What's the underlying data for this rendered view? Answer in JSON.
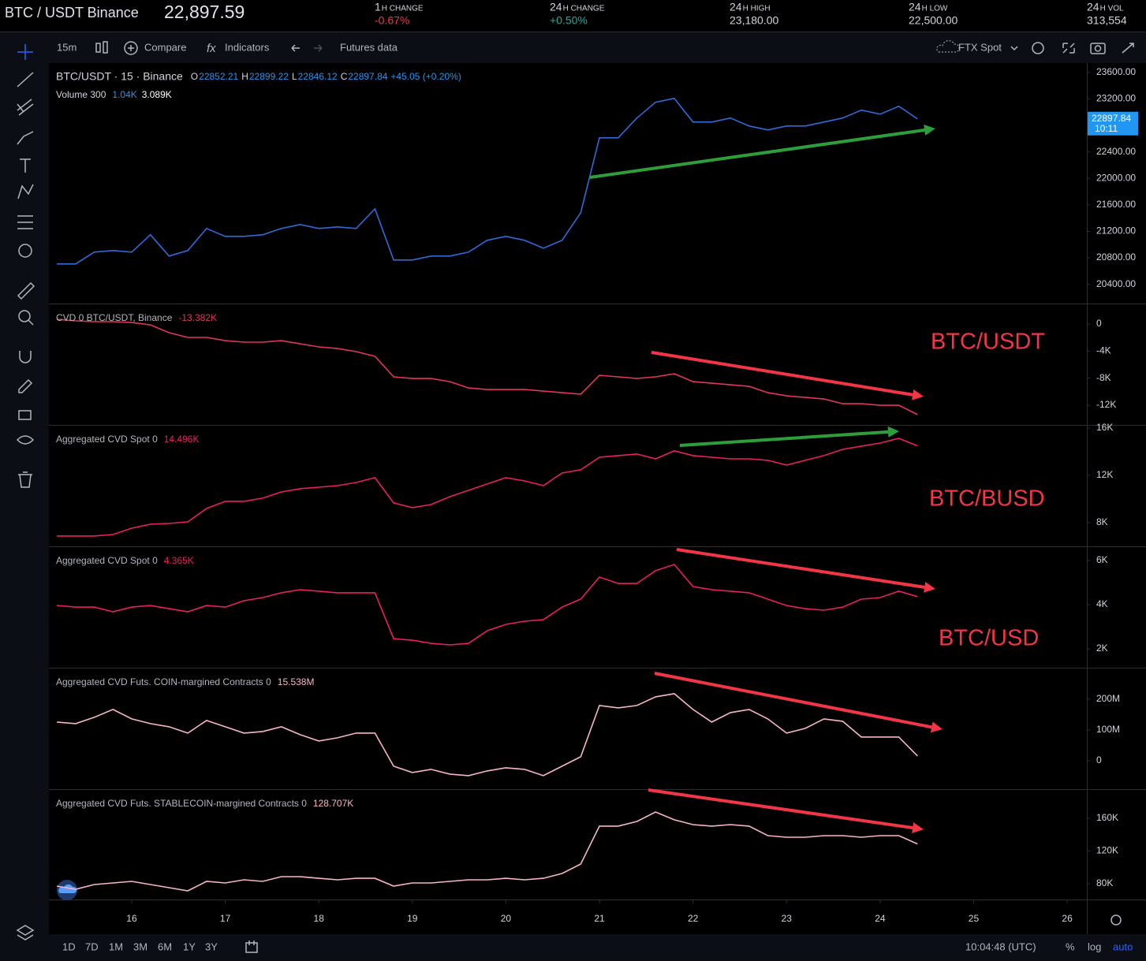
{
  "header": {
    "symbol": "BTC / USDT Binance",
    "price": "22,897.59",
    "stats": [
      {
        "period": "1",
        "label": "H CHANGE",
        "value": "-0.67%",
        "color": "#f23645"
      },
      {
        "period": "24",
        "label": "H CHANGE",
        "value": "+0.50%",
        "color": "#26a69a"
      },
      {
        "period": "24",
        "label": "H HIGH",
        "value": "23,180.00",
        "color": "#d1d4dc"
      },
      {
        "period": "24",
        "label": "H LOW",
        "value": "22,500.00",
        "color": "#d1d4dc"
      },
      {
        "period": "24",
        "label": "H VOL",
        "value": "313,554",
        "color": "#d1d4dc"
      }
    ]
  },
  "toolbar": {
    "interval": "15m",
    "compare": "Compare",
    "indicators": "Indicators",
    "futures": "Futures data",
    "source": "FTX Spot"
  },
  "footer": {
    "ranges": [
      "1D",
      "7D",
      "1M",
      "3M",
      "6M",
      "1Y",
      "3Y"
    ],
    "clock": "10:04:48 (UTC)",
    "percent": "%",
    "log": "log",
    "auto": "auto"
  },
  "chart_data": [
    {
      "type": "line",
      "title": "BTC/USDT · 15 · Binance",
      "ohlc": [
        {
          "label": "O",
          "value": "22852.21"
        },
        {
          "label": "H",
          "value": "22899.22"
        },
        {
          "label": "L",
          "value": "22846.12"
        },
        {
          "label": "C",
          "value": "22897.84"
        }
      ],
      "change": "+45.05 (+0.20%)",
      "volume_label": "Volume 300",
      "volume_values": [
        "1.04K",
        "3.089K"
      ],
      "last_price": 22897.84,
      "countdown": "10:11",
      "color": "#2f6bd8",
      "x": [
        15.2,
        15.4,
        15.6,
        15.8,
        16,
        16.2,
        16.4,
        16.6,
        16.8,
        17,
        17.2,
        17.4,
        17.6,
        17.8,
        18,
        18.2,
        18.4,
        18.6,
        18.8,
        19,
        19.2,
        19.4,
        19.6,
        19.8,
        20,
        20.2,
        20.4,
        20.6,
        20.8,
        21,
        21.2,
        21.4,
        21.6,
        21.8,
        22,
        22.2,
        22.4,
        22.6,
        22.8,
        23,
        23.2,
        23.4,
        23.6,
        23.8,
        24,
        24.2,
        24.4
      ],
      "values": [
        20707,
        20707,
        20886,
        20910,
        20886,
        21148,
        20826,
        20910,
        21243,
        21124,
        21124,
        21148,
        21243,
        21302,
        21243,
        21267,
        21243,
        21540,
        20767,
        20767,
        20826,
        20826,
        20886,
        21064,
        21124,
        21064,
        20945,
        21064,
        21481,
        22612,
        22612,
        22910,
        23148,
        23207,
        22850,
        22850,
        22910,
        22790,
        22731,
        22790,
        22790,
        22850,
        22910,
        23029,
        22969,
        23088,
        22897.84
      ],
      "xlim": [
        15.115,
        26.21
      ],
      "xticks": [
        16,
        17,
        18,
        19,
        20,
        21,
        22,
        23,
        24,
        25,
        26
      ],
      "ylim": [
        20110,
        23740
      ],
      "yticks": [
        {
          "value": 23600,
          "label": "23600.00"
        },
        {
          "value": 23200,
          "label": "23200.00"
        },
        {
          "value": 22800,
          "label": "22800.00"
        },
        {
          "value": 22400,
          "label": "22400.00"
        },
        {
          "value": 22000,
          "label": "22000.00"
        },
        {
          "value": 21600,
          "label": "21600.00"
        },
        {
          "value": 21200,
          "label": "21200.00"
        },
        {
          "value": 20800,
          "label": "20800.00"
        },
        {
          "value": 20400,
          "label": "20400.00"
        }
      ]
    },
    {
      "type": "line",
      "title": "CVD 0 BTC/USDT, Binance",
      "last_label": "-13.382K",
      "annotation": "BTC/USDT",
      "color": "#e0365a",
      "x": [
        15.2,
        15.4,
        15.6,
        15.8,
        16,
        16.2,
        16.4,
        16.6,
        16.8,
        17,
        17.2,
        17.4,
        17.6,
        17.8,
        18,
        18.2,
        18.4,
        18.6,
        18.8,
        19,
        19.2,
        19.4,
        19.6,
        19.8,
        20,
        20.2,
        20.4,
        20.6,
        20.8,
        21,
        21.2,
        21.4,
        21.6,
        21.8,
        22,
        22.2,
        22.4,
        22.6,
        22.8,
        23,
        23.2,
        23.4,
        23.6,
        23.8,
        24,
        24.2,
        24.4
      ],
      "values": [
        0.7,
        0.47,
        0.35,
        0.35,
        0.23,
        -0.12,
        -1.28,
        -1.98,
        -1.98,
        -2.45,
        -2.68,
        -2.68,
        -2.45,
        -2.92,
        -3.38,
        -3.62,
        -4.08,
        -4.78,
        -7.81,
        -8.05,
        -8.05,
        -8.51,
        -9.45,
        -9.68,
        -9.68,
        -9.68,
        -9.91,
        -10.15,
        -10.38,
        -7.58,
        -7.81,
        -8.05,
        -7.81,
        -7.35,
        -8.51,
        -8.75,
        -8.98,
        -9.21,
        -10.15,
        -10.61,
        -10.85,
        -11.08,
        -11.78,
        -11.78,
        -12.01,
        -12.01,
        -13.382
      ],
      "ylim": [
        -15.03,
        2.8
      ],
      "yticks": [
        0,
        {
          "value": -4,
          "label": "-4K"
        },
        {
          "value": -8,
          "label": "-8K"
        },
        {
          "value": -12,
          "label": "-12K"
        }
      ]
    },
    {
      "type": "line",
      "title": "Aggregated CVD Spot 0",
      "last_label": "14.496K",
      "annotation": "BTC/BUSD",
      "color": "#e91e63",
      "x": [
        15.2,
        15.4,
        15.6,
        15.8,
        16,
        16.2,
        16.4,
        16.6,
        16.8,
        17,
        17.2,
        17.4,
        17.6,
        17.8,
        18,
        18.2,
        18.4,
        18.6,
        18.8,
        19,
        19.2,
        19.4,
        19.6,
        19.8,
        20,
        20.2,
        20.4,
        20.6,
        20.8,
        21,
        21.2,
        21.4,
        21.6,
        21.8,
        22,
        22.2,
        22.4,
        22.6,
        22.8,
        23,
        23.2,
        23.4,
        23.6,
        23.8,
        24,
        24.2,
        24.4
      ],
      "values": [
        6.87,
        6.87,
        6.87,
        7,
        7.53,
        7.87,
        7.93,
        8.07,
        9.2,
        9.8,
        9.8,
        10.07,
        10.6,
        10.87,
        11,
        11.13,
        11.4,
        11.8,
        9.67,
        9.27,
        9.53,
        10.2,
        10.73,
        11.27,
        11.8,
        11.53,
        11.13,
        12.2,
        12.47,
        13.53,
        13.67,
        13.8,
        13.4,
        14.07,
        13.67,
        13.53,
        13.4,
        13.4,
        13.27,
        12.87,
        13.27,
        13.67,
        14.2,
        14.47,
        14.73,
        15.13,
        14.496
      ],
      "ylim": [
        5.93,
        16.13
      ],
      "yticks": [
        {
          "value": 16,
          "label": "16K"
        },
        {
          "value": 12,
          "label": "12K"
        },
        {
          "value": 8,
          "label": "8K"
        }
      ]
    },
    {
      "type": "line",
      "title": "Aggregated CVD Spot 0",
      "last_label": "4.365K",
      "annotation": "BTC/USD",
      "color": "#e91e63",
      "x": [
        15.2,
        15.4,
        15.6,
        15.8,
        16,
        16.2,
        16.4,
        16.6,
        16.8,
        17,
        17.2,
        17.4,
        17.6,
        17.8,
        18,
        18.2,
        18.4,
        18.6,
        18.8,
        19,
        19.2,
        19.4,
        19.6,
        19.8,
        20,
        20.2,
        20.4,
        20.6,
        20.8,
        21,
        21.2,
        21.4,
        21.6,
        21.8,
        22,
        22.2,
        22.4,
        22.6,
        22.8,
        23,
        23.2,
        23.4,
        23.6,
        23.8,
        24,
        24.2,
        24.4
      ],
      "values": [
        3.96,
        3.89,
        3.89,
        3.68,
        3.89,
        3.96,
        3.82,
        3.68,
        3.96,
        3.89,
        4.18,
        4.32,
        4.54,
        4.68,
        4.61,
        4.54,
        4.54,
        4.54,
        2.46,
        2.39,
        2.25,
        2.18,
        2.25,
        2.82,
        3.11,
        3.25,
        3.32,
        3.89,
        4.25,
        5.25,
        4.96,
        4.96,
        5.54,
        5.82,
        4.82,
        4.68,
        4.61,
        4.54,
        4.25,
        3.96,
        3.82,
        3.75,
        3.89,
        4.25,
        4.32,
        4.61,
        4.365
      ],
      "ylim": [
        1.11,
        6.57
      ],
      "yticks": [
        {
          "value": 6,
          "label": "6K"
        },
        {
          "value": 4,
          "label": "4K"
        },
        {
          "value": 2,
          "label": "2K"
        }
      ]
    },
    {
      "type": "line",
      "title": "Aggregated CVD Futs. COIN-margined Contracts 0",
      "last_label": "15.538M",
      "color": "#f7b6c8",
      "x": [
        15.2,
        15.4,
        15.6,
        15.8,
        16,
        16.2,
        16.4,
        16.6,
        16.8,
        17,
        17.2,
        17.4,
        17.6,
        17.8,
        18,
        18.2,
        18.4,
        18.6,
        18.8,
        19,
        19.2,
        19.4,
        19.6,
        19.8,
        20,
        20.2,
        20.4,
        20.6,
        20.8,
        21,
        21.2,
        21.4,
        21.6,
        21.8,
        22,
        22.2,
        22.4,
        22.6,
        22.8,
        23,
        23.2,
        23.4,
        23.6,
        23.8,
        24,
        24.2,
        24.4
      ],
      "values": [
        125.6,
        120.5,
        141,
        166.7,
        135.9,
        120.5,
        110.3,
        89.7,
        130.8,
        110.3,
        89.7,
        94.9,
        110.3,
        84.6,
        64.1,
        74.4,
        89.7,
        89.7,
        -17.9,
        -38.5,
        -28.2,
        -43.6,
        -48.7,
        -33.3,
        -23.1,
        -28.2,
        -48.7,
        -17.9,
        12.8,
        179.5,
        171.8,
        179.5,
        207.7,
        217.9,
        166.7,
        125.6,
        156.4,
        166.7,
        135.9,
        89.7,
        105.1,
        135.9,
        128.2,
        76.9,
        76.9,
        76.9,
        15.538
      ],
      "ylim": [
        -95,
        297
      ],
      "yticks": [
        {
          "value": 200,
          "label": "200M"
        },
        {
          "value": 100,
          "label": "100M"
        },
        0
      ]
    },
    {
      "type": "line",
      "title": "Aggregated CVD Futs. STABLECOIN-margined Contracts 0",
      "last_label": "128.707K",
      "color": "#f7b6c8",
      "x": [
        15.2,
        15.4,
        15.6,
        15.8,
        16,
        16.2,
        16.4,
        16.6,
        16.8,
        17,
        17.2,
        17.4,
        17.6,
        17.8,
        18,
        18.2,
        18.4,
        18.6,
        18.8,
        19,
        19.2,
        19.4,
        19.6,
        19.8,
        20,
        20.2,
        20.4,
        20.6,
        20.8,
        21,
        21.2,
        21.4,
        21.6,
        21.8,
        22,
        22.2,
        22.4,
        22.6,
        22.8,
        23,
        23.2,
        23.4,
        23.6,
        23.8,
        24,
        24.2,
        24.4
      ],
      "values": [
        77.1,
        73.3,
        79,
        81,
        82.9,
        79,
        75.2,
        71.3,
        82.9,
        81,
        84.8,
        82.9,
        88.7,
        88.7,
        86.7,
        84.8,
        86.7,
        86.7,
        77.1,
        81,
        81,
        82.9,
        84.8,
        84.8,
        86.7,
        84.8,
        86.7,
        92.5,
        104.1,
        150.4,
        150.4,
        156.1,
        167.7,
        158.1,
        152.3,
        150.4,
        152.3,
        150.4,
        138.8,
        136.9,
        136.9,
        138.8,
        138.8,
        136.9,
        138.8,
        138.8,
        128.707
      ],
      "ylim": [
        61.7,
        193.7
      ],
      "yticks": [
        {
          "value": 160,
          "label": "160K"
        },
        {
          "value": 120,
          "label": "120K"
        },
        {
          "value": 80,
          "label": "80K"
        }
      ]
    }
  ]
}
